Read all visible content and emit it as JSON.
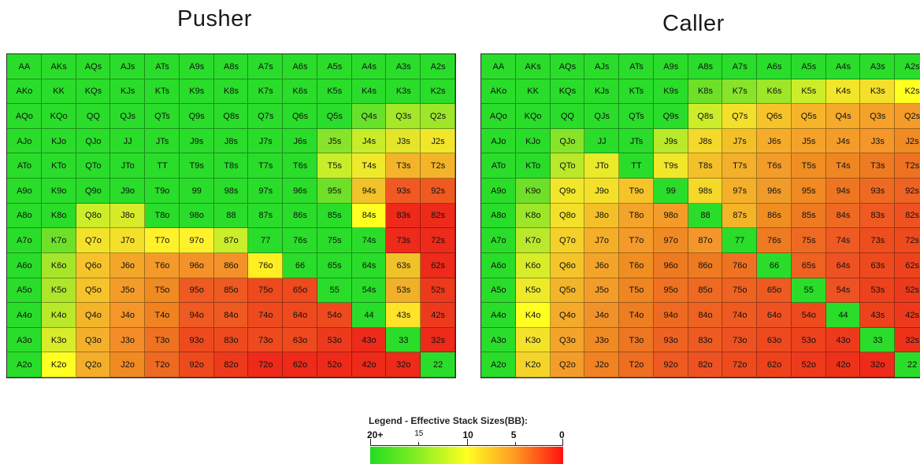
{
  "titles": {
    "pusher": "Pusher",
    "caller": "Caller"
  },
  "hands": [
    [
      "AA",
      "AKs",
      "AQs",
      "AJs",
      "ATs",
      "A9s",
      "A8s",
      "A7s",
      "A6s",
      "A5s",
      "A4s",
      "A3s",
      "A2s"
    ],
    [
      "AKo",
      "KK",
      "KQs",
      "KJs",
      "KTs",
      "K9s",
      "K8s",
      "K7s",
      "K6s",
      "K5s",
      "K4s",
      "K3s",
      "K2s"
    ],
    [
      "AQo",
      "KQo",
      "QQ",
      "QJs",
      "QTs",
      "Q9s",
      "Q8s",
      "Q7s",
      "Q6s",
      "Q5s",
      "Q4s",
      "Q3s",
      "Q2s"
    ],
    [
      "AJo",
      "KJo",
      "QJo",
      "JJ",
      "JTs",
      "J9s",
      "J8s",
      "J7s",
      "J6s",
      "J5s",
      "J4s",
      "J3s",
      "J2s"
    ],
    [
      "ATo",
      "KTo",
      "QTo",
      "JTo",
      "TT",
      "T9s",
      "T8s",
      "T7s",
      "T6s",
      "T5s",
      "T4s",
      "T3s",
      "T2s"
    ],
    [
      "A9o",
      "K9o",
      "Q9o",
      "J9o",
      "T9o",
      "99",
      "98s",
      "97s",
      "96s",
      "95s",
      "94s",
      "93s",
      "92s"
    ],
    [
      "A8o",
      "K8o",
      "Q8o",
      "J8o",
      "T8o",
      "98o",
      "88",
      "87s",
      "86s",
      "85s",
      "84s",
      "83s",
      "82s"
    ],
    [
      "A7o",
      "K7o",
      "Q7o",
      "J7o",
      "T7o",
      "97o",
      "87o",
      "77",
      "76s",
      "75s",
      "74s",
      "73s",
      "72s"
    ],
    [
      "A6o",
      "K6o",
      "Q6o",
      "J6o",
      "T6o",
      "96o",
      "86o",
      "76o",
      "66",
      "65s",
      "64s",
      "63s",
      "62s"
    ],
    [
      "A5o",
      "K5o",
      "Q5o",
      "J5o",
      "T5o",
      "95o",
      "85o",
      "75o",
      "65o",
      "55",
      "54s",
      "53s",
      "52s"
    ],
    [
      "A4o",
      "K4o",
      "Q4o",
      "J4o",
      "T4o",
      "94o",
      "84o",
      "74o",
      "64o",
      "54o",
      "44",
      "43s",
      "42s"
    ],
    [
      "A3o",
      "K3o",
      "Q3o",
      "J3o",
      "T3o",
      "93o",
      "83o",
      "73o",
      "63o",
      "53o",
      "43o",
      "33",
      "32s"
    ],
    [
      "A2o",
      "K2o",
      "Q2o",
      "J2o",
      "T2o",
      "92o",
      "82o",
      "72o",
      "62o",
      "52o",
      "42o",
      "32o",
      "22"
    ]
  ],
  "pusher_colors": [
    [
      "#2add2a",
      "#2add2a",
      "#2add2a",
      "#2add2a",
      "#2add2a",
      "#2add2a",
      "#2add2a",
      "#2add2a",
      "#2add2a",
      "#2add2a",
      "#2add2a",
      "#2add2a",
      "#2add2a"
    ],
    [
      "#2add2a",
      "#2add2a",
      "#2add2a",
      "#2add2a",
      "#2add2a",
      "#2add2a",
      "#2add2a",
      "#2add2a",
      "#2add2a",
      "#2add2a",
      "#2add2a",
      "#2add2a",
      "#2add2a"
    ],
    [
      "#2add2a",
      "#2add2a",
      "#2add2a",
      "#2add2a",
      "#2add2a",
      "#2add2a",
      "#2add2a",
      "#2add2a",
      "#2add2a",
      "#2add2a",
      "#66e22a",
      "#a4e82a",
      "#9ee62a"
    ],
    [
      "#2add2a",
      "#2add2a",
      "#2add2a",
      "#2add2a",
      "#2add2a",
      "#2add2a",
      "#2add2a",
      "#2add2a",
      "#2add2a",
      "#88e42a",
      "#c8ec2a",
      "#e4e42a",
      "#f2e62a"
    ],
    [
      "#2add2a",
      "#2add2a",
      "#2add2a",
      "#2add2a",
      "#2add2a",
      "#2add2a",
      "#2add2a",
      "#2add2a",
      "#2add2a",
      "#c8ee2a",
      "#eeea2a",
      "#f4b42a",
      "#f4b42a"
    ],
    [
      "#2add2a",
      "#2add2a",
      "#2add2a",
      "#2add2a",
      "#2add2a",
      "#2add2a",
      "#2add2a",
      "#2add2a",
      "#2add2a",
      "#6ee02a",
      "#f2c22a",
      "#f05a22",
      "#ee5a22"
    ],
    [
      "#2add2a",
      "#2add2a",
      "#ccee2a",
      "#d8ea2a",
      "#2add2a",
      "#2add2a",
      "#2add2a",
      "#2add2a",
      "#2add2a",
      "#2add2a",
      "#ffff22",
      "#ee2a1a",
      "#ee2a1a"
    ],
    [
      "#2add2a",
      "#6ee02a",
      "#f4e22a",
      "#f4e02a",
      "#fff22a",
      "#fff22a",
      "#ccee2a",
      "#2add2a",
      "#2add2a",
      "#2add2a",
      "#2add2a",
      "#ee2a1a",
      "#ee2a1a"
    ],
    [
      "#2add2a",
      "#a6e62a",
      "#f6c42a",
      "#f4a62a",
      "#f49a2a",
      "#f4922a",
      "#f4922a",
      "#ffee22",
      "#2add2a",
      "#2add2a",
      "#2add2a",
      "#f0c22a",
      "#ee2a1a"
    ],
    [
      "#2add2a",
      "#aee62a",
      "#f6c42a",
      "#f49c2a",
      "#f08a22",
      "#ee5a22",
      "#ee5a22",
      "#ee4a1e",
      "#ee4a1e",
      "#2add2a",
      "#2add2a",
      "#f0b02a",
      "#ee3a1c"
    ],
    [
      "#2add2a",
      "#bae82a",
      "#f4b42a",
      "#f4962a",
      "#f08222",
      "#ee5a22",
      "#ee5a22",
      "#ee4a1e",
      "#ee4a1e",
      "#ee4a1e",
      "#2add2a",
      "#ffe22a",
      "#ee3a1c"
    ],
    [
      "#2add2a",
      "#d8ec2a",
      "#f4b02a",
      "#f48c2a",
      "#ee7222",
      "#ee4a1e",
      "#ee4a1e",
      "#ee4a1e",
      "#ee4a1e",
      "#ee3a1c",
      "#ee2a1a",
      "#2add2a",
      "#ee2a1a"
    ],
    [
      "#2add2a",
      "#ffff22",
      "#f4ae2a",
      "#f08a22",
      "#ee6a22",
      "#ee4a1e",
      "#ee3a1c",
      "#ee2a1a",
      "#ee2a1a",
      "#ee2a1a",
      "#ee2a1a",
      "#ee2a1a",
      "#2add2a"
    ]
  ],
  "caller_colors": [
    [
      "#2add2a",
      "#2add2a",
      "#2add2a",
      "#2add2a",
      "#2add2a",
      "#2add2a",
      "#2add2a",
      "#2add2a",
      "#2add2a",
      "#2add2a",
      "#2add2a",
      "#2add2a",
      "#2add2a"
    ],
    [
      "#2add2a",
      "#2add2a",
      "#2add2a",
      "#2add2a",
      "#2add2a",
      "#2add2a",
      "#6ee02a",
      "#88e42a",
      "#9ee62a",
      "#ccee2a",
      "#f2e62a",
      "#f4e02a",
      "#ffff22"
    ],
    [
      "#2add2a",
      "#2add2a",
      "#2add2a",
      "#2add2a",
      "#2add2a",
      "#2add2a",
      "#ccee2a",
      "#f4e02a",
      "#f6c42a",
      "#f6b42a",
      "#f4aa2a",
      "#f4a22a",
      "#f49c2a"
    ],
    [
      "#2add2a",
      "#2add2a",
      "#88e42a",
      "#2add2a",
      "#2add2a",
      "#bae82a",
      "#f4d82a",
      "#f4c02a",
      "#f6ac2a",
      "#f4a22a",
      "#f49c2a",
      "#f4962a",
      "#f08a22"
    ],
    [
      "#2add2a",
      "#2add2a",
      "#bae82a",
      "#e8ea2a",
      "#2add2a",
      "#f2e62a",
      "#f4c02a",
      "#f4b02a",
      "#f49c2a",
      "#f08e22",
      "#f08622",
      "#ee7a22",
      "#ee7222"
    ],
    [
      "#2add2a",
      "#6ee02a",
      "#f2e62a",
      "#f4e02a",
      "#f6c42a",
      "#2add2a",
      "#f4d82a",
      "#f4b02a",
      "#f09c2a",
      "#f08a22",
      "#ee7622",
      "#ee6a22",
      "#ee6222"
    ],
    [
      "#2add2a",
      "#9ee62a",
      "#f4e02a",
      "#f4c02a",
      "#f4a42a",
      "#f49c2a",
      "#2add2a",
      "#f4b42a",
      "#f08e22",
      "#ee7a22",
      "#ee6a22",
      "#ee5a22",
      "#ee5222"
    ],
    [
      "#2add2a",
      "#bae82a",
      "#f4d02a",
      "#f4ae2a",
      "#f49a2a",
      "#f08a22",
      "#f4962a",
      "#2add2a",
      "#ee7a22",
      "#ee6a22",
      "#ee5a22",
      "#ee4e1e",
      "#ee4a1e"
    ],
    [
      "#2add2a",
      "#d8ec2a",
      "#f4c42a",
      "#f4a42a",
      "#f08e22",
      "#ee7a22",
      "#ee7a22",
      "#ee7222",
      "#2add2a",
      "#ee6222",
      "#ee5222",
      "#ee4a1e",
      "#ee421c"
    ],
    [
      "#2add2a",
      "#eeea2a",
      "#f4b42a",
      "#f49c2a",
      "#f08622",
      "#ee7222",
      "#ee6a22",
      "#ee6222",
      "#ee5a22",
      "#2add2a",
      "#ee5222",
      "#ee421c",
      "#ee3a1c"
    ],
    [
      "#2add2a",
      "#ffff22",
      "#f4aa2a",
      "#f0922a",
      "#ee7e22",
      "#ee6a22",
      "#ee6222",
      "#ee5a22",
      "#ee5222",
      "#ee4a1e",
      "#2add2a",
      "#ee421c",
      "#ee3a1c"
    ],
    [
      "#2add2a",
      "#f4e22a",
      "#f4a42a",
      "#f08a22",
      "#ee7622",
      "#ee6222",
      "#ee5a22",
      "#ee5222",
      "#ee4a1e",
      "#ee421c",
      "#ee3a1c",
      "#2add2a",
      "#ee321a"
    ],
    [
      "#2add2a",
      "#f4d42a",
      "#f49c2a",
      "#f08222",
      "#ee6e22",
      "#ee5a22",
      "#ee5222",
      "#ee4a1e",
      "#ee421c",
      "#ee3a1c",
      "#ee321a",
      "#ee2a1a",
      "#2add2a"
    ]
  ],
  "legend": {
    "title": "Legend - Effective Stack Sizes(BB):",
    "ticks": [
      {
        "label": "20+",
        "value": 20
      },
      {
        "label": "15",
        "value": 15
      },
      {
        "label": "10",
        "value": 10
      },
      {
        "label": "5",
        "value": 5
      },
      {
        "label": "0",
        "value": 0
      }
    ],
    "colors": [
      "#22dd22",
      "#88ee22",
      "#ffff22",
      "#ff9922",
      "#ff1111"
    ]
  }
}
